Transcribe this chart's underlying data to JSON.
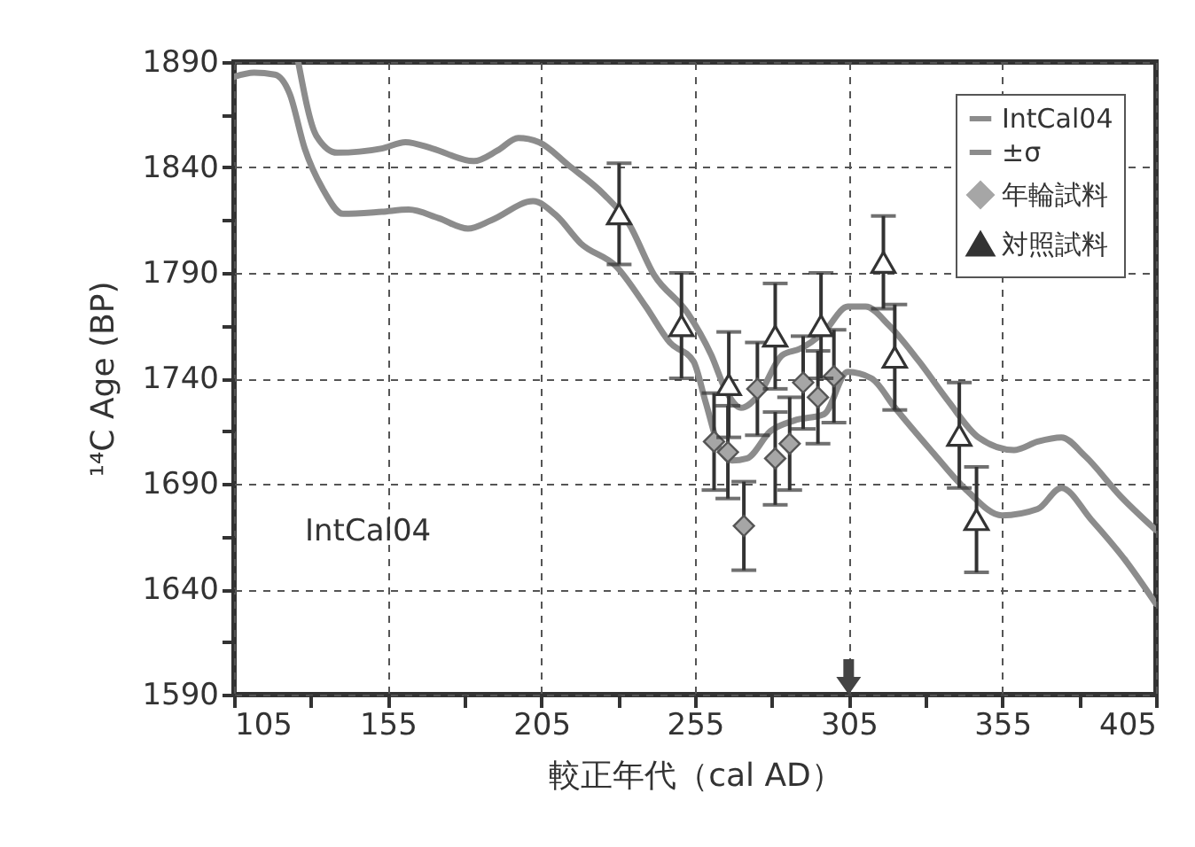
{
  "chart_data": {
    "type": "scatter",
    "xlabel": "較正年代（cal AD）",
    "ylabel": "¹⁴C Age (BP)",
    "xlim": [
      105,
      405
    ],
    "ylim": [
      1590,
      1890
    ],
    "xticks": [
      105,
      {
        "value": 130,
        "label": null
      },
      155,
      {
        "value": 180,
        "label": null
      },
      205,
      {
        "value": 230,
        "label": null
      },
      255,
      {
        "value": 280,
        "label": null
      },
      305,
      {
        "value": 330,
        "label": null
      },
      355,
      {
        "value": 380,
        "label": null
      },
      405
    ],
    "yticks": [
      1590,
      {
        "value": 1615,
        "label": null
      },
      1640,
      {
        "value": 1665,
        "label": null
      },
      1690,
      {
        "value": 1715,
        "label": null
      },
      1740,
      {
        "value": 1765,
        "label": null
      },
      1790,
      {
        "value": 1815,
        "label": null
      },
      1840,
      {
        "value": 1865,
        "label": null
      },
      1890
    ],
    "grid": true,
    "legend": "top right",
    "annotations": [
      "IntCal04"
    ],
    "series": [
      {
        "name": "IntCal04",
        "type": "line",
        "color": "#8c8c8c",
        "x": [
          125.9,
          131.8,
          138.6,
          153.1,
          160.8,
          169.5,
          183.0,
          190.7,
          197.5,
          204.2,
          213.9,
          225.5,
          233.2,
          241.7,
          252.6,
          260.3,
          265.1,
          270.0,
          275.7,
          283.4,
          289.2,
          297.0,
          304.7,
          310.5,
          318.2,
          327.9,
          337.5,
          347.2,
          358.8,
          366.5,
          374.2,
          382.0,
          393.5,
          405
        ],
        "values": [
          1890,
          1855,
          1847,
          1849,
          1852,
          1849,
          1843,
          1848,
          1854,
          1852,
          1841,
          1827,
          1814,
          1789,
          1771,
          1751,
          1734,
          1726,
          1732,
          1751,
          1754,
          1762,
          1774,
          1774,
          1765,
          1748,
          1729,
          1712,
          1706,
          1710,
          1712,
          1703,
          1684,
          1668
        ]
      },
      {
        "name": "±σ",
        "type": "line",
        "color": "#8c8c8c",
        "x": [
          105,
          111.5,
          118.3,
          123.1,
          128.0,
          133.8,
          140.5,
          153.1,
          161.8,
          171.5,
          181.1,
          188.8,
          202.3,
          210.0,
          217.8,
          229.4,
          239.0,
          246.8,
          254.5,
          258.4,
          263.2,
          267.0,
          271.9,
          279.6,
          287.3,
          297.0,
          304.7,
          312.4,
          320.1,
          331.7,
          343.3,
          354.9,
          366.5,
          374.2,
          383.9,
          395.4,
          405
        ],
        "values": [
          1883,
          1885,
          1884,
          1875,
          1849,
          1830,
          1818,
          1819,
          1820,
          1816,
          1811,
          1815,
          1824,
          1817,
          1804,
          1793,
          1774,
          1757,
          1748,
          1729,
          1706,
          1701,
          1702,
          1715,
          1720,
          1723,
          1743,
          1740,
          1726,
          1706,
          1687,
          1675,
          1678,
          1688,
          1673,
          1653,
          1633
        ]
      },
      {
        "name": "年輪試料",
        "type": "scatter",
        "marker": "diamond",
        "color": "#a6a6a6",
        "x": [
          261.2,
          265.7,
          270.9,
          275.3,
          281.1,
          285.8,
          290.2,
          295.0,
          300.2
        ],
        "values": [
          1710,
          1705,
          1670,
          1735,
          1702,
          1709,
          1738,
          1731,
          1741
        ],
        "errors": [
          23,
          22,
          21,
          22,
          22,
          22,
          22,
          22,
          22
        ]
      },
      {
        "name": "対照試料",
        "type": "scatter",
        "marker": "triangle",
        "color": "#333333",
        "x": [
          230.3,
          250.6,
          266.0,
          281.1,
          296.0,
          316.3,
          320.0,
          341.0,
          346.6
        ],
        "values": [
          1818,
          1765,
          1737,
          1760,
          1765,
          1795,
          1750,
          1713,
          1673
        ],
        "errors": [
          24,
          25,
          25,
          25,
          25,
          22,
          25,
          25,
          25
        ]
      }
    ]
  }
}
